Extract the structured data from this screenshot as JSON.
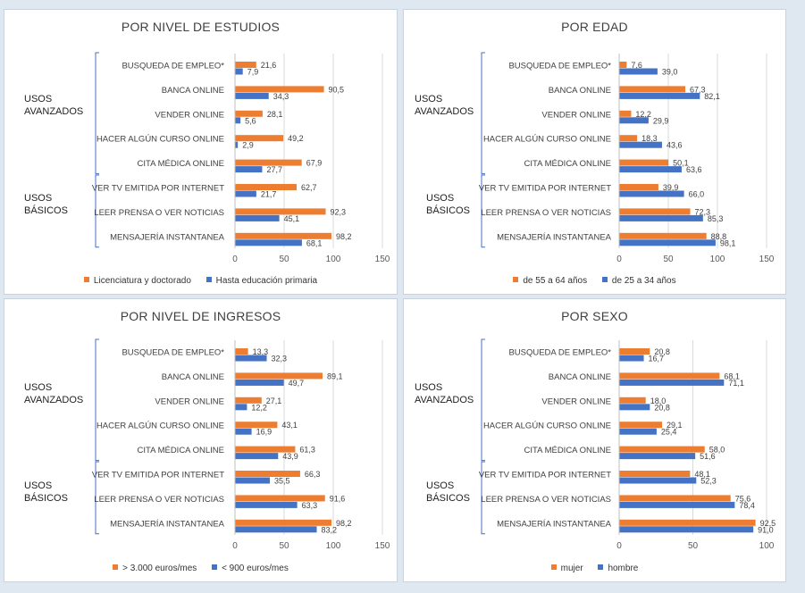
{
  "colors": {
    "orange": "#ed7d31",
    "blue": "#4472c4"
  },
  "chart_data": [
    {
      "type": "bar",
      "title": "POR NIVEL DE ESTUDIOS",
      "categories": [
        "BUSQUEDA DE EMPLEO*",
        "BANCA ONLINE",
        "VENDER ONLINE",
        "HACER ALGÚN CURSO ONLINE",
        "CITA MÉDICA ONLINE",
        "VER TV EMITIDA POR INTERNET",
        "LEER PRENSA O VER NOTICIAS",
        "MENSAJERÍA INSTANTANEA"
      ],
      "groups": [
        {
          "label": "USOS AVANZADOS",
          "count": 5
        },
        {
          "label": "USOS BÁSICOS",
          "count": 3
        }
      ],
      "series": [
        {
          "name": "Licenciatura y doctorado",
          "values": [
            21.6,
            90.5,
            28.1,
            49.2,
            67.9,
            62.7,
            92.3,
            98.2
          ],
          "labels": [
            "21,6",
            "90,5",
            "28,1",
            "49,2",
            "67,9",
            "62,7",
            "92,3",
            "98,2"
          ]
        },
        {
          "name": "Hasta educación primaria",
          "values": [
            7.9,
            34.3,
            5.6,
            2.9,
            27.7,
            21.7,
            45.1,
            68.1
          ],
          "labels": [
            "7,9",
            "34,3",
            "5,6",
            "2,9",
            "27,7",
            "21,7",
            "45,1",
            "68,1"
          ]
        }
      ],
      "xlim": [
        0,
        150
      ],
      "xticks": [
        "0",
        "50",
        "100",
        "150"
      ]
    },
    {
      "type": "bar",
      "title": "POR EDAD",
      "categories": [
        "BUSQUEDA DE EMPLEO*",
        "BANCA ONLINE",
        "VENDER ONLINE",
        "HACER ALGÚN CURSO ONLINE",
        "CITA MÉDICA ONLINE",
        "VER TV EMITIDA POR INTERNET",
        "LEER PRENSA O VER NOTICIAS",
        "MENSAJERÍA INSTANTANEA"
      ],
      "groups": [
        {
          "label": "USOS AVANZADOS",
          "count": 5
        },
        {
          "label": "USOS BÁSICOS",
          "count": 3
        }
      ],
      "series": [
        {
          "name": "de 55 a 64 años",
          "values": [
            7.6,
            67.3,
            12.2,
            18.3,
            50.1,
            39.9,
            72.3,
            88.8
          ],
          "labels": [
            "7,6",
            "67,3",
            "12,2",
            "18,3",
            "50,1",
            "39,9",
            "72,3",
            "88,8"
          ]
        },
        {
          "name": "de 25 a 34 años",
          "values": [
            39.0,
            82.1,
            29.9,
            43.6,
            63.6,
            66.0,
            85.3,
            98.1
          ],
          "labels": [
            "39,0",
            "82,1",
            "29,9",
            "43,6",
            "63,6",
            "66,0",
            "85,3",
            "98,1"
          ]
        }
      ],
      "xlim": [
        0,
        150
      ],
      "xticks": [
        "0",
        "50",
        "100",
        "150"
      ]
    },
    {
      "type": "bar",
      "title": "POR NIVEL DE INGRESOS",
      "categories": [
        "BUSQUEDA DE EMPLEO*",
        "BANCA ONLINE",
        "VENDER ONLINE",
        "HACER ALGÚN CURSO ONLINE",
        "CITA MÉDICA ONLINE",
        "VER TV EMITIDA POR INTERNET",
        "LEER PRENSA O VER NOTICIAS",
        "MENSAJERÍA INSTANTANEA"
      ],
      "groups": [
        {
          "label": "USOS AVANZADOS",
          "count": 5
        },
        {
          "label": "USOS BÁSICOS",
          "count": 3
        }
      ],
      "series": [
        {
          "name": "> 3.000 euros/mes",
          "values": [
            13.3,
            89.1,
            27.1,
            43.1,
            61.3,
            66.3,
            91.6,
            98.2
          ],
          "labels": [
            "13,3",
            "89,1",
            "27,1",
            "43,1",
            "61,3",
            "66,3",
            "91,6",
            "98,2"
          ]
        },
        {
          "name": "< 900 euros/mes",
          "values": [
            32.3,
            49.7,
            12.2,
            16.9,
            43.9,
            35.5,
            63.3,
            83.2
          ],
          "labels": [
            "32,3",
            "49,7",
            "12,2",
            "16,9",
            "43,9",
            "35,5",
            "63,3",
            "83,2"
          ]
        }
      ],
      "xlim": [
        0,
        150
      ],
      "xticks": [
        "0",
        "50",
        "100",
        "150"
      ]
    },
    {
      "type": "bar",
      "title": "POR SEXO",
      "categories": [
        "BUSQUEDA DE EMPLEO*",
        "BANCA ONLINE",
        "VENDER ONLINE",
        "HACER ALGÚN CURSO ONLINE",
        "CITA MÉDICA ONLINE",
        "VER TV EMITIDA POR INTERNET",
        "LEER PRENSA O VER NOTICIAS",
        "MENSAJERÍA INSTANTANEA"
      ],
      "groups": [
        {
          "label": "USOS AVANZADOS",
          "count": 5
        },
        {
          "label": "USOS BÁSICOS",
          "count": 3
        }
      ],
      "series": [
        {
          "name": "mujer",
          "values": [
            20.8,
            68.1,
            18.0,
            29.1,
            58.0,
            48.1,
            75.6,
            92.5
          ],
          "labels": [
            "20,8",
            "68,1",
            "18,0",
            "29,1",
            "58,0",
            "48,1",
            "75,6",
            "92,5"
          ]
        },
        {
          "name": "hombre",
          "values": [
            16.7,
            71.1,
            20.8,
            25.4,
            51.6,
            52.3,
            78.4,
            91.0
          ],
          "labels": [
            "16,7",
            "71,1",
            "20,8",
            "25,4",
            "51,6",
            "52,3",
            "78,4",
            "91,0"
          ]
        }
      ],
      "xlim": [
        0,
        100
      ],
      "xticks": [
        "0",
        "50",
        "100"
      ]
    }
  ]
}
